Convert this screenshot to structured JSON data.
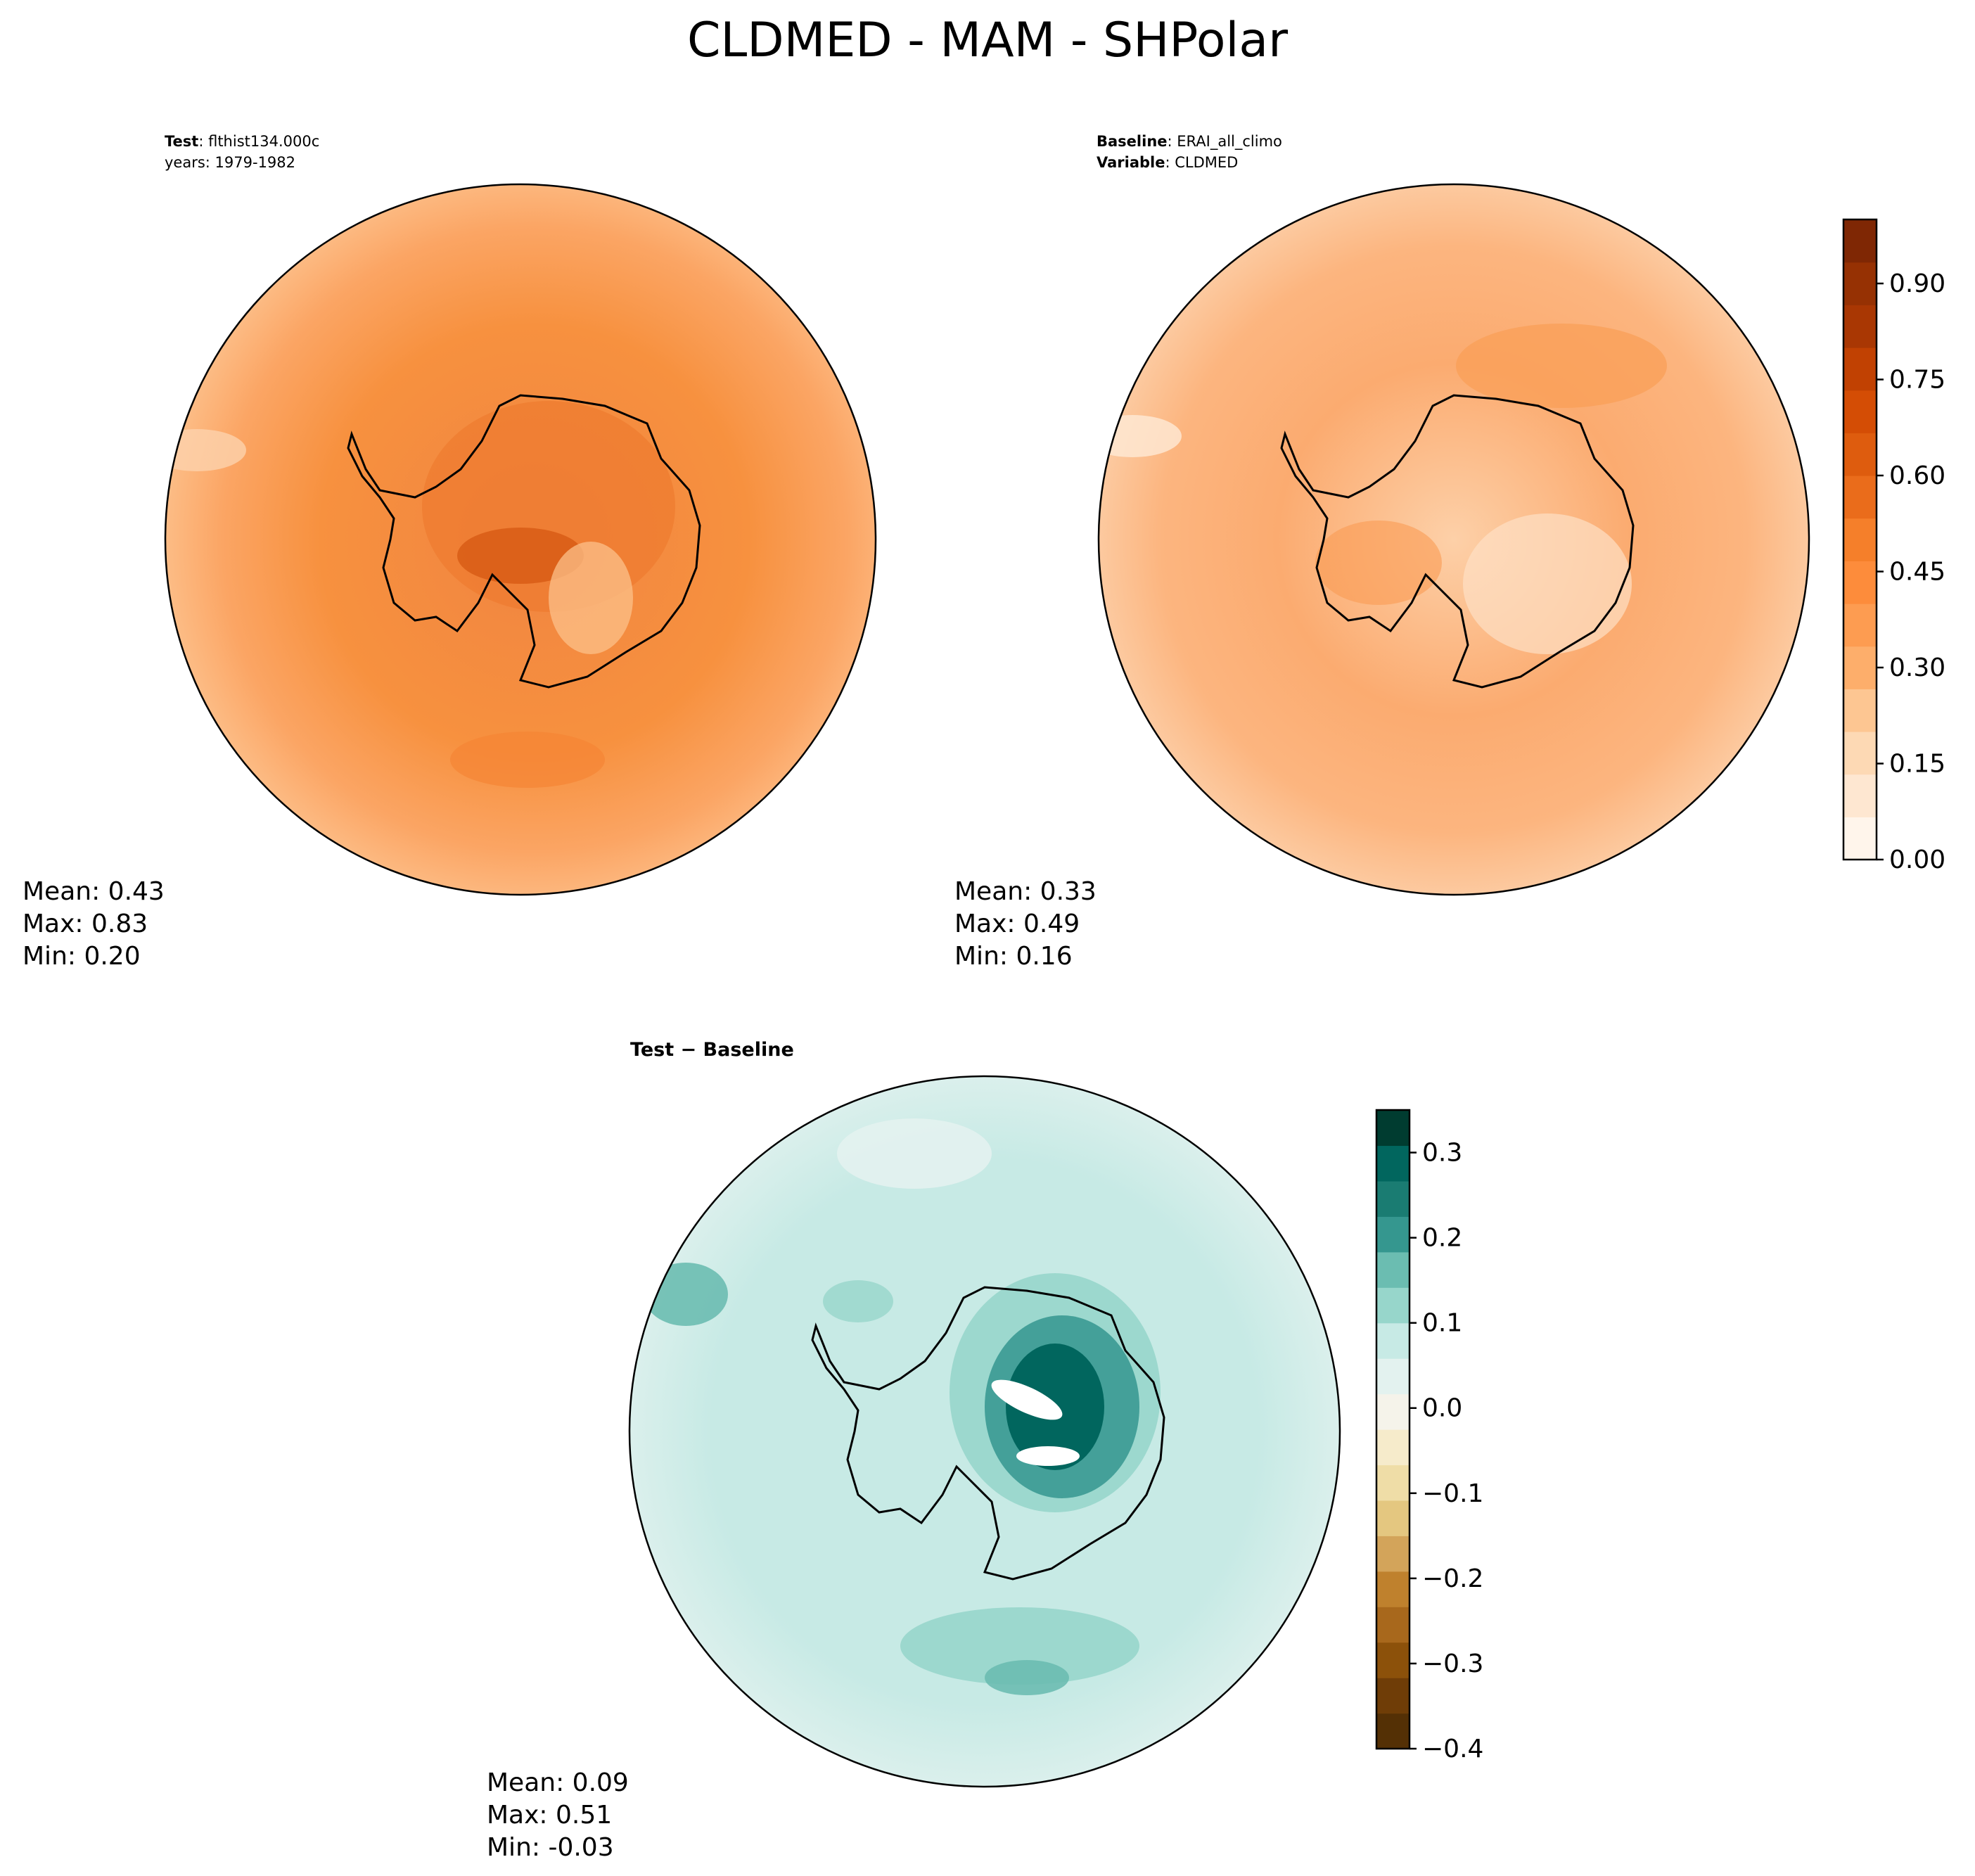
{
  "figure": {
    "title": "CLDMED - MAM - SHPolar"
  },
  "test_panel": {
    "header_bold": "Test",
    "header_value": "flthist134.000c",
    "years": "years: 1979-1982",
    "mean": "Mean:  0.43",
    "max": "Max:  0.83",
    "min": "Min:  0.20"
  },
  "baseline_panel": {
    "header_bold": "Baseline",
    "header_value": "ERAI_all_climo",
    "variable_bold": "Variable",
    "variable_value": "CLDMED",
    "mean": "Mean:  0.33",
    "max": "Max:  0.49",
    "min": "Min:  0.16"
  },
  "diff_panel": {
    "title": "Test − Baseline",
    "mean": "Mean:  0.09",
    "max": "Max:  0.51",
    "min": "Min: -0.03"
  },
  "chart_data": [
    {
      "type": "heatmap",
      "name": "test",
      "projection": "south polar stereographic",
      "colormap": "Oranges",
      "vmin": 0.0,
      "vmax": 1.0,
      "stats": {
        "mean": 0.43,
        "max": 0.83,
        "min": 0.2
      }
    },
    {
      "type": "heatmap",
      "name": "baseline",
      "projection": "south polar stereographic",
      "colormap": "Oranges",
      "vmin": 0.0,
      "vmax": 1.0,
      "stats": {
        "mean": 0.33,
        "max": 0.49,
        "min": 0.16
      }
    },
    {
      "type": "heatmap",
      "name": "difference",
      "projection": "south polar stereographic",
      "colormap": "BrBG",
      "vmin": -0.4,
      "vmax": 0.35,
      "stats": {
        "mean": 0.09,
        "max": 0.51,
        "min": -0.03
      }
    }
  ],
  "colorbar_main": {
    "ticks": [
      "0.00",
      "0.15",
      "0.30",
      "0.45",
      "0.60",
      "0.75",
      "0.90"
    ],
    "tick_values": [
      0.0,
      0.15,
      0.3,
      0.45,
      0.6,
      0.75,
      0.9
    ],
    "range": [
      0.0,
      1.0
    ],
    "colors": [
      "#fff5eb",
      "#fee7d1",
      "#fdd9b4",
      "#fdc692",
      "#fdae6b",
      "#fd9c51",
      "#fd8c3b",
      "#f57f2a",
      "#ea6c1b",
      "#de5c0e",
      "#d44d05",
      "#c14102",
      "#a93703",
      "#963103",
      "#7f2704"
    ]
  },
  "colorbar_diff": {
    "ticks": [
      "0.3",
      "0.2",
      "0.1",
      "0.0",
      "−0.1",
      "−0.2",
      "−0.3",
      "−0.4"
    ],
    "tick_values": [
      0.3,
      0.2,
      0.1,
      0.0,
      -0.1,
      -0.2,
      -0.3,
      -0.4
    ],
    "range": [
      -0.4,
      0.35
    ],
    "colors": [
      "#543005",
      "#6f3d07",
      "#8c510a",
      "#a8681c",
      "#bf812d",
      "#d3a45a",
      "#e4c780",
      "#efdda7",
      "#f6ebcb",
      "#f5f3ea",
      "#e3f2ef",
      "#c7eae5",
      "#97d6cb",
      "#6bbdb1",
      "#35978f",
      "#1a7c72",
      "#01665e",
      "#003c30"
    ]
  }
}
